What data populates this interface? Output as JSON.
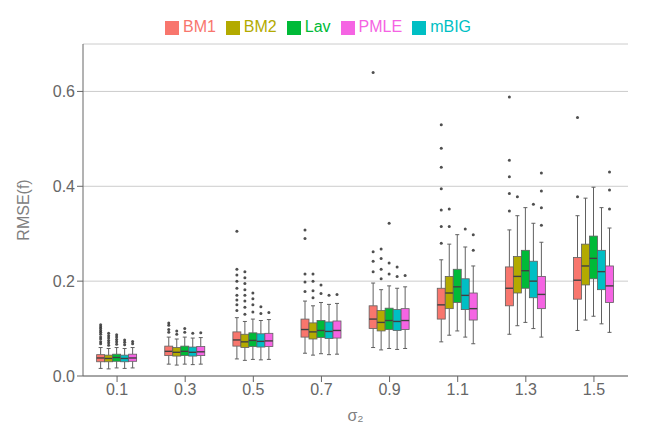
{
  "chart_data": {
    "type": "box",
    "xlabel": "σ₂",
    "ylabel": "RMSE(f)",
    "categories": [
      "0.1",
      "0.3",
      "0.5",
      "0.7",
      "0.9",
      "1.1",
      "1.3",
      "1.5"
    ],
    "ylim": [
      0.0,
      0.7
    ],
    "yticks": [
      {
        "value": 0.0,
        "label": "0.0"
      },
      0.2,
      0.4,
      0.6
    ],
    "grid": true,
    "legend": "top",
    "series": [
      {
        "name": "BM1",
        "color": "#F8766D",
        "values": [
          {
            "q1": 0.03,
            "med": 0.038,
            "q3": 0.045,
            "whislo": 0.016,
            "whishi": 0.06,
            "fliers": [
              0.068,
              0.072,
              0.078,
              0.082,
              0.088,
              0.092,
              0.096,
              0.1,
              0.104,
              0.108
            ]
          },
          {
            "q1": 0.043,
            "med": 0.052,
            "q3": 0.063,
            "whislo": 0.025,
            "whishi": 0.082,
            "fliers": [
              0.092,
              0.098,
              0.107,
              0.112
            ]
          },
          {
            "q1": 0.063,
            "med": 0.076,
            "q3": 0.093,
            "whislo": 0.036,
            "whishi": 0.123,
            "fliers": [
              0.138,
              0.15,
              0.16,
              0.17,
              0.185,
              0.2,
              0.213,
              0.225,
              0.305
            ]
          },
          {
            "q1": 0.082,
            "med": 0.098,
            "q3": 0.12,
            "whislo": 0.048,
            "whishi": 0.158,
            "fliers": [
              0.178,
              0.198,
              0.215,
              0.29,
              0.308
            ]
          },
          {
            "q1": 0.1,
            "med": 0.12,
            "q3": 0.148,
            "whislo": 0.06,
            "whishi": 0.196,
            "fliers": [
              0.22,
              0.242,
              0.262,
              0.64
            ]
          },
          {
            "q1": 0.12,
            "med": 0.15,
            "q3": 0.185,
            "whislo": 0.072,
            "whishi": 0.245,
            "fliers": [
              0.28,
              0.315,
              0.35,
              0.395,
              0.44,
              0.48,
              0.53
            ]
          },
          {
            "q1": 0.148,
            "med": 0.185,
            "q3": 0.23,
            "whislo": 0.088,
            "whishi": 0.308,
            "fliers": [
              0.348,
              0.385,
              0.42,
              0.455,
              0.588
            ]
          },
          {
            "q1": 0.162,
            "med": 0.202,
            "q3": 0.25,
            "whislo": 0.096,
            "whishi": 0.338,
            "fliers": [
              0.378,
              0.545
            ]
          }
        ]
      },
      {
        "name": "BM2",
        "color": "#B3AA00",
        "values": [
          {
            "q1": 0.03,
            "med": 0.037,
            "q3": 0.044,
            "whislo": 0.015,
            "whishi": 0.058,
            "fliers": [
              0.065,
              0.07,
              0.075,
              0.08,
              0.085,
              0.09
            ]
          },
          {
            "q1": 0.042,
            "med": 0.05,
            "q3": 0.06,
            "whislo": 0.023,
            "whishi": 0.078,
            "fliers": [
              0.088,
              0.095
            ]
          },
          {
            "q1": 0.06,
            "med": 0.072,
            "q3": 0.088,
            "whislo": 0.033,
            "whishi": 0.115,
            "fliers": [
              0.13,
              0.145,
              0.158,
              0.17,
              0.182,
              0.195,
              0.207,
              0.22
            ]
          },
          {
            "q1": 0.078,
            "med": 0.093,
            "q3": 0.112,
            "whislo": 0.044,
            "whishi": 0.148,
            "fliers": [
              0.165,
              0.18,
              0.2,
              0.215
            ]
          },
          {
            "q1": 0.095,
            "med": 0.113,
            "q3": 0.138,
            "whislo": 0.055,
            "whishi": 0.182,
            "fliers": [
              0.205,
              0.225,
              0.248,
              0.268
            ]
          },
          {
            "q1": 0.142,
            "med": 0.175,
            "q3": 0.21,
            "whislo": 0.086,
            "whishi": 0.278,
            "fliers": [
              0.315,
              0.352
            ]
          },
          {
            "q1": 0.175,
            "med": 0.21,
            "q3": 0.252,
            "whislo": 0.106,
            "whishi": 0.338,
            "fliers": [
              0.378
            ]
          },
          {
            "q1": 0.192,
            "med": 0.232,
            "q3": 0.278,
            "whislo": 0.118,
            "whishi": 0.375,
            "fliers": []
          }
        ]
      },
      {
        "name": "Lav",
        "color": "#00BA38",
        "values": [
          {
            "q1": 0.031,
            "med": 0.039,
            "q3": 0.046,
            "whislo": 0.017,
            "whishi": 0.06,
            "fliers": [
              0.067,
              0.072,
              0.077,
              0.082,
              0.087
            ]
          },
          {
            "q1": 0.043,
            "med": 0.052,
            "q3": 0.063,
            "whislo": 0.025,
            "whishi": 0.082,
            "fliers": [
              0.092,
              0.1
            ]
          },
          {
            "q1": 0.062,
            "med": 0.075,
            "q3": 0.091,
            "whislo": 0.035,
            "whishi": 0.12,
            "fliers": [
              0.135,
              0.15,
              0.163,
              0.175
            ]
          },
          {
            "q1": 0.081,
            "med": 0.096,
            "q3": 0.117,
            "whislo": 0.047,
            "whishi": 0.155,
            "fliers": [
              0.174,
              0.192
            ]
          },
          {
            "q1": 0.098,
            "med": 0.117,
            "q3": 0.143,
            "whislo": 0.058,
            "whishi": 0.19,
            "fliers": [
              0.215,
              0.238,
              0.322
            ]
          },
          {
            "q1": 0.155,
            "med": 0.188,
            "q3": 0.225,
            "whislo": 0.095,
            "whishi": 0.298,
            "fliers": []
          },
          {
            "q1": 0.185,
            "med": 0.222,
            "q3": 0.265,
            "whislo": 0.113,
            "whishi": 0.355,
            "fliers": []
          },
          {
            "q1": 0.205,
            "med": 0.248,
            "q3": 0.295,
            "whislo": 0.126,
            "whishi": 0.398,
            "fliers": []
          }
        ]
      },
      {
        "name": "mBIG",
        "color": "#00BFC4",
        "values": [
          {
            "q1": 0.03,
            "med": 0.037,
            "q3": 0.044,
            "whislo": 0.016,
            "whishi": 0.058,
            "fliers": [
              0.066,
              0.071,
              0.076
            ]
          },
          {
            "q1": 0.042,
            "med": 0.05,
            "q3": 0.061,
            "whislo": 0.024,
            "whishi": 0.08,
            "fliers": [
              0.09
            ]
          },
          {
            "q1": 0.061,
            "med": 0.073,
            "q3": 0.089,
            "whislo": 0.034,
            "whishi": 0.117,
            "fliers": [
              0.132,
              0.146
            ]
          },
          {
            "q1": 0.079,
            "med": 0.094,
            "q3": 0.114,
            "whislo": 0.045,
            "whishi": 0.151,
            "fliers": [
              0.17
            ]
          },
          {
            "q1": 0.096,
            "med": 0.115,
            "q3": 0.14,
            "whislo": 0.056,
            "whishi": 0.185,
            "fliers": [
              0.21,
              0.23
            ]
          },
          {
            "q1": 0.14,
            "med": 0.17,
            "q3": 0.205,
            "whislo": 0.082,
            "whishi": 0.272,
            "fliers": [
              0.31
            ]
          },
          {
            "q1": 0.165,
            "med": 0.2,
            "q3": 0.242,
            "whislo": 0.1,
            "whishi": 0.322,
            "fliers": [
              0.362
            ]
          },
          {
            "q1": 0.182,
            "med": 0.22,
            "q3": 0.265,
            "whislo": 0.11,
            "whishi": 0.355,
            "fliers": []
          }
        ]
      },
      {
        "name": "PMLE",
        "color": "#F564E3",
        "values": [
          {
            "q1": 0.031,
            "med": 0.038,
            "q3": 0.046,
            "whislo": 0.017,
            "whishi": 0.06,
            "fliers": [
              0.068,
              0.073
            ]
          },
          {
            "q1": 0.043,
            "med": 0.051,
            "q3": 0.062,
            "whislo": 0.025,
            "whishi": 0.081,
            "fliers": [
              0.091
            ]
          },
          {
            "q1": 0.062,
            "med": 0.074,
            "q3": 0.09,
            "whislo": 0.035,
            "whishi": 0.119,
            "fliers": [
              0.134
            ]
          },
          {
            "q1": 0.08,
            "med": 0.096,
            "q3": 0.116,
            "whislo": 0.046,
            "whishi": 0.153,
            "fliers": [
              0.172
            ]
          },
          {
            "q1": 0.098,
            "med": 0.117,
            "q3": 0.142,
            "whislo": 0.058,
            "whishi": 0.188,
            "fliers": [
              0.212
            ]
          },
          {
            "q1": 0.118,
            "med": 0.142,
            "q3": 0.175,
            "whislo": 0.068,
            "whishi": 0.232,
            "fliers": [
              0.265,
              0.298
            ]
          },
          {
            "q1": 0.142,
            "med": 0.172,
            "q3": 0.21,
            "whislo": 0.082,
            "whishi": 0.282,
            "fliers": [
              0.318,
              0.355,
              0.39,
              0.428
            ]
          },
          {
            "q1": 0.155,
            "med": 0.19,
            "q3": 0.232,
            "whislo": 0.092,
            "whishi": 0.312,
            "fliers": [
              0.352,
              0.392,
              0.43
            ]
          }
        ]
      }
    ]
  }
}
